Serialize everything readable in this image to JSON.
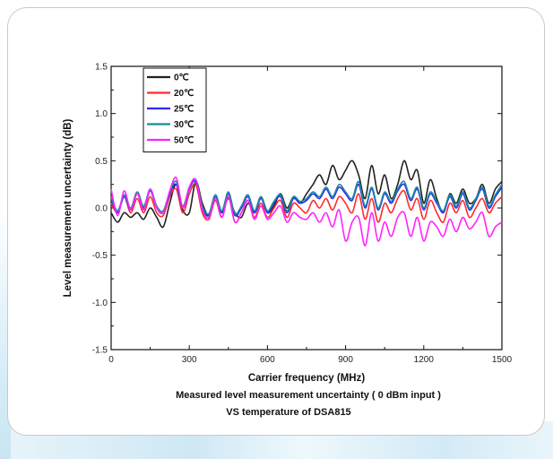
{
  "chart_data": {
    "type": "line",
    "xlabel": "Carrier frequency (MHz)",
    "ylabel": "Level measurement uncertainty (dB)",
    "xlim": [
      0,
      1500
    ],
    "ylim": [
      -1.5,
      1.5
    ],
    "x_ticks": [
      "0",
      "300",
      "600",
      "900",
      "1200",
      "1500"
    ],
    "y_ticks": [
      "1.5",
      "1.0",
      "0.5",
      "0.0",
      "-0.5",
      "-1.0",
      "-1.5"
    ],
    "caption_line1": "Measured level measurement uncertainty ( 0 dBm input )",
    "caption_line2": "VS temperature of DSA815",
    "legend_position": "top-left",
    "grid": false,
    "x": [
      0,
      25,
      50,
      75,
      100,
      125,
      150,
      175,
      200,
      225,
      250,
      275,
      300,
      325,
      350,
      375,
      400,
      425,
      450,
      475,
      500,
      525,
      550,
      575,
      600,
      625,
      650,
      675,
      700,
      725,
      750,
      775,
      800,
      825,
      850,
      875,
      900,
      925,
      950,
      975,
      1000,
      1025,
      1050,
      1075,
      1100,
      1125,
      1150,
      1175,
      1200,
      1225,
      1250,
      1275,
      1300,
      1325,
      1350,
      1375,
      1400,
      1425,
      1450,
      1475,
      1500
    ],
    "series": [
      {
        "name": "0℃",
        "color": "#222222",
        "values": [
          -0.05,
          -0.15,
          -0.05,
          -0.1,
          -0.05,
          -0.12,
          0.0,
          -0.1,
          -0.2,
          0.05,
          0.25,
          -0.02,
          -0.05,
          0.28,
          0.05,
          -0.08,
          0.08,
          -0.05,
          0.1,
          -0.05,
          -0.1,
          0.05,
          -0.05,
          0.12,
          -0.05,
          0.02,
          0.15,
          0.0,
          0.12,
          0.05,
          0.15,
          0.25,
          0.35,
          0.25,
          0.45,
          0.3,
          0.4,
          0.5,
          0.35,
          0.1,
          0.45,
          0.15,
          0.35,
          0.1,
          0.25,
          0.5,
          0.3,
          0.4,
          0.05,
          0.3,
          0.1,
          -0.05,
          0.15,
          0.05,
          0.2,
          0.05,
          0.1,
          0.25,
          0.05,
          0.2,
          0.28
        ]
      },
      {
        "name": "20℃",
        "color": "#ff2a2a",
        "values": [
          0.05,
          -0.05,
          0.12,
          -0.05,
          0.1,
          -0.05,
          0.12,
          -0.05,
          -0.08,
          0.12,
          0.2,
          -0.05,
          0.15,
          0.25,
          -0.05,
          -0.12,
          0.08,
          -0.1,
          0.12,
          -0.15,
          -0.05,
          0.08,
          -0.1,
          0.05,
          -0.1,
          0.0,
          0.08,
          -0.1,
          0.05,
          0.0,
          -0.05,
          0.08,
          0.0,
          0.1,
          -0.02,
          0.12,
          0.05,
          -0.05,
          0.15,
          -0.12,
          0.1,
          -0.15,
          0.05,
          -0.05,
          0.1,
          0.18,
          -0.02,
          0.1,
          -0.12,
          0.08,
          -0.05,
          -0.15,
          0.05,
          -0.05,
          0.08,
          -0.1,
          0.0,
          0.1,
          -0.05,
          0.05,
          0.12
        ]
      },
      {
        "name": "25℃",
        "color": "#2a2aff",
        "values": [
          0.1,
          -0.05,
          0.12,
          -0.02,
          0.15,
          0.0,
          0.18,
          0.0,
          -0.05,
          0.15,
          0.25,
          0.0,
          0.2,
          0.28,
          0.0,
          -0.08,
          0.12,
          -0.05,
          0.15,
          -0.08,
          0.0,
          0.12,
          -0.05,
          0.1,
          -0.05,
          0.05,
          0.12,
          -0.05,
          0.1,
          0.05,
          0.08,
          0.15,
          0.1,
          0.2,
          0.1,
          0.22,
          0.15,
          0.08,
          0.25,
          0.0,
          0.2,
          -0.02,
          0.15,
          0.05,
          0.18,
          0.25,
          0.08,
          0.2,
          -0.02,
          0.15,
          0.05,
          -0.05,
          0.12,
          0.0,
          0.15,
          -0.02,
          0.08,
          0.2,
          0.0,
          0.12,
          0.22
        ]
      },
      {
        "name": "30℃",
        "color": "#1a8a9a",
        "values": [
          0.12,
          -0.03,
          0.14,
          0.0,
          0.17,
          0.02,
          0.2,
          0.02,
          -0.03,
          0.17,
          0.28,
          0.02,
          0.22,
          0.3,
          0.02,
          -0.06,
          0.14,
          -0.03,
          0.17,
          -0.06,
          0.02,
          0.14,
          -0.03,
          0.12,
          -0.03,
          0.07,
          0.14,
          -0.03,
          0.12,
          0.07,
          0.1,
          0.17,
          0.12,
          0.22,
          0.12,
          0.25,
          0.17,
          0.1,
          0.28,
          0.02,
          0.22,
          0.0,
          0.17,
          0.07,
          0.2,
          0.28,
          0.1,
          0.22,
          0.0,
          0.17,
          0.07,
          -0.03,
          0.14,
          0.02,
          0.17,
          0.0,
          0.1,
          0.22,
          0.02,
          0.14,
          0.25
        ]
      },
      {
        "name": "50℃",
        "color": "#ff22ff",
        "values": [
          0.2,
          -0.08,
          0.18,
          -0.02,
          0.15,
          -0.02,
          0.2,
          0.0,
          -0.05,
          0.18,
          0.32,
          0.0,
          0.22,
          0.3,
          -0.02,
          -0.1,
          0.1,
          -0.1,
          0.12,
          -0.15,
          -0.05,
          0.08,
          -0.12,
          0.02,
          -0.12,
          -0.05,
          0.02,
          -0.15,
          -0.05,
          -0.1,
          -0.12,
          -0.05,
          -0.15,
          -0.05,
          -0.2,
          -0.02,
          -0.35,
          -0.15,
          -0.1,
          -0.4,
          -0.05,
          -0.35,
          -0.15,
          -0.3,
          -0.1,
          -0.05,
          -0.3,
          -0.1,
          -0.35,
          -0.15,
          -0.2,
          -0.3,
          -0.12,
          -0.25,
          -0.1,
          -0.22,
          -0.15,
          -0.05,
          -0.3,
          -0.2,
          -0.15
        ]
      }
    ]
  }
}
